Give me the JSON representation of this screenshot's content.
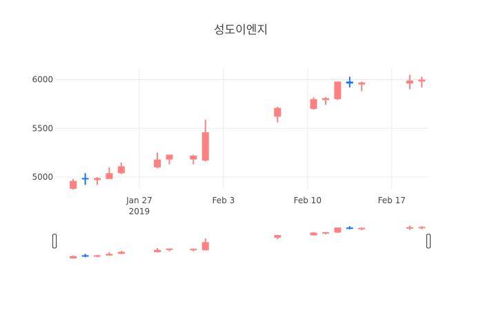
{
  "chart_data": {
    "type": "candlestick",
    "title": "성도이엔지",
    "xlabel": "",
    "ylabel": "",
    "x_range": [
      "2019-01-20",
      "2019-02-20"
    ],
    "ylim": [
      4880,
      6110
    ],
    "y_ticks": [
      5000,
      5500,
      6000
    ],
    "x_ticks": [
      {
        "date": "2019-01-27",
        "label": "Jan 27",
        "sublabel": "2019"
      },
      {
        "date": "2019-02-03",
        "label": "Feb 3",
        "sublabel": ""
      },
      {
        "date": "2019-02-10",
        "label": "Feb 10",
        "sublabel": ""
      },
      {
        "date": "2019-02-17",
        "label": "Feb 17",
        "sublabel": ""
      }
    ],
    "grid": true,
    "legend": "none",
    "rangeslider": true,
    "colors": {
      "increasing": "#ff8080",
      "decreasing": "#1a73e8",
      "grid": "#ebebeb",
      "text": "#444444",
      "handle": "#333333"
    },
    "candles": [
      {
        "date": "2019-01-21",
        "open": 4880,
        "high": 4980,
        "low": 4870,
        "close": 4960
      },
      {
        "date": "2019-01-22",
        "open": 4990,
        "high": 5040,
        "low": 4920,
        "close": 4980
      },
      {
        "date": "2019-01-23",
        "open": 4970,
        "high": 5000,
        "low": 4920,
        "close": 4990
      },
      {
        "date": "2019-01-24",
        "open": 4980,
        "high": 5100,
        "low": 4980,
        "close": 5040
      },
      {
        "date": "2019-01-25",
        "open": 5040,
        "high": 5150,
        "low": 5030,
        "close": 5110
      },
      {
        "date": "2019-01-28",
        "open": 5100,
        "high": 5250,
        "low": 5090,
        "close": 5180
      },
      {
        "date": "2019-01-29",
        "open": 5180,
        "high": 5230,
        "low": 5130,
        "close": 5230
      },
      {
        "date": "2019-01-31",
        "open": 5180,
        "high": 5230,
        "low": 5130,
        "close": 5220
      },
      {
        "date": "2019-02-01",
        "open": 5170,
        "high": 5590,
        "low": 5160,
        "close": 5460
      },
      {
        "date": "2019-02-07",
        "open": 5620,
        "high": 5720,
        "low": 5560,
        "close": 5710
      },
      {
        "date": "2019-02-10",
        "open": 5700,
        "high": 5820,
        "low": 5690,
        "close": 5800
      },
      {
        "date": "2019-02-11",
        "open": 5790,
        "high": 5820,
        "low": 5740,
        "close": 5810
      },
      {
        "date": "2019-02-12",
        "open": 5800,
        "high": 5980,
        "low": 5790,
        "close": 5980
      },
      {
        "date": "2019-02-13",
        "open": 5980,
        "high": 6030,
        "low": 5920,
        "close": 5960
      },
      {
        "date": "2019-02-14",
        "open": 5950,
        "high": 5980,
        "low": 5880,
        "close": 5970
      },
      {
        "date": "2019-02-18",
        "open": 5960,
        "high": 6050,
        "low": 5900,
        "close": 5990
      },
      {
        "date": "2019-02-19",
        "open": 5980,
        "high": 6030,
        "low": 5920,
        "close": 6000
      }
    ]
  }
}
